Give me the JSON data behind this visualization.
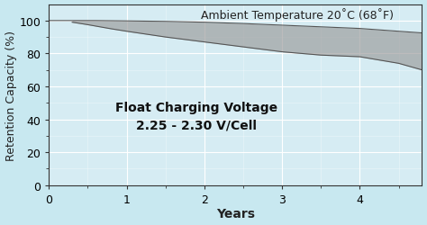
{
  "background_color": "#c8e8f0",
  "plot_background_color": "#d6ecf3",
  "xlim": [
    0,
    4.8
  ],
  "ylim": [
    0,
    110
  ],
  "yticks": [
    0,
    20,
    40,
    60,
    80,
    100
  ],
  "xticks": [
    0,
    1,
    2,
    3,
    4
  ],
  "xlabel": "Years",
  "ylabel": "Retention Capacity (%)",
  "annotation1_line1": "Float Charging Voltage",
  "annotation1_line2": "2.25 - 2.30 V/Cell",
  "annotation2": "Ambient Temperature 20˚C (68˚F)",
  "upper_x": [
    0.0,
    0.3,
    0.6,
    1.0,
    1.5,
    2.0,
    2.5,
    3.0,
    3.5,
    4.0,
    4.5,
    4.8
  ],
  "upper_y": [
    100,
    100,
    100,
    99.8,
    99.5,
    99.0,
    98.2,
    97.2,
    96.2,
    95.2,
    93.5,
    92.5
  ],
  "lower_x": [
    0.3,
    0.5,
    0.8,
    1.0,
    1.5,
    2.0,
    2.5,
    3.0,
    3.5,
    4.0,
    4.5,
    4.8
  ],
  "lower_y": [
    99,
    97.5,
    95,
    93.5,
    90,
    87,
    84,
    81,
    79,
    78,
    74,
    70
  ],
  "band_color": "#999999",
  "band_alpha": 0.65,
  "grid_color": "#ffffff",
  "minor_grid_color": "#e0eef3",
  "line_color": "#555555",
  "xlabel_fontsize": 10,
  "ylabel_fontsize": 9,
  "annotation1_fontsize": 10,
  "annotation2_fontsize": 9,
  "tick_fontsize": 9,
  "spine_color": "#333333"
}
